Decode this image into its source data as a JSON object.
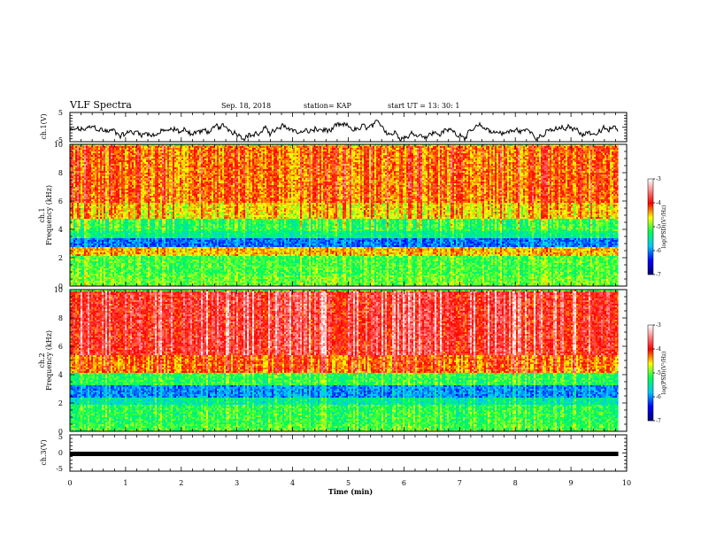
{
  "header": {
    "title": "VLF Spectra",
    "date": "Sep. 18, 2018",
    "station": "station= KAP",
    "start": "start  UT  =   13: 30: 1"
  },
  "chart_data": [
    {
      "type": "line",
      "panel": "ch1-waveform",
      "ylabel": "ch.1(V)",
      "ylim": [
        -5,
        5
      ],
      "yticks": [
        "5",
        "-5"
      ],
      "x_range_min": [
        0,
        9.85
      ],
      "description_values": "noisy waveform, mean near -1.5 V, amplitude roughly ±2 V"
    },
    {
      "type": "heatmap",
      "panel": "ch1-spectrogram",
      "ylabel": "ch.1\nFrequency  (kHz)",
      "ylim": [
        0,
        10
      ],
      "yticks": [
        "0",
        "2",
        "4",
        "6",
        "8",
        "10"
      ],
      "x_range_min": [
        0,
        9.85
      ],
      "colorbar": {
        "label": "log(PSD)(V²/Hz)",
        "range": [
          -7,
          -3
        ],
        "ticks": [
          "-3",
          "-4",
          "-5",
          "-6",
          "-7"
        ]
      },
      "bands_khz": [
        {
          "from": 0.0,
          "to": 0.8,
          "level": -5.0
        },
        {
          "from": 0.8,
          "to": 2.2,
          "level": -5.1
        },
        {
          "from": 2.2,
          "to": 2.8,
          "level": -4.5
        },
        {
          "from": 2.8,
          "to": 3.4,
          "level": -6.1
        },
        {
          "from": 3.4,
          "to": 3.9,
          "level": -5.4
        },
        {
          "from": 3.9,
          "to": 4.8,
          "level": -5.2
        },
        {
          "from": 4.8,
          "to": 6.0,
          "level": -4.6
        },
        {
          "from": 6.0,
          "to": 10.0,
          "level": -4.3
        }
      ]
    },
    {
      "type": "heatmap",
      "panel": "ch2-spectrogram",
      "ylabel": "ch.2\nFrequency  (kHz)",
      "ylim": [
        0,
        10
      ],
      "yticks": [
        "0",
        "2",
        "4",
        "6",
        "8",
        "10"
      ],
      "x_range_min": [
        0,
        9.85
      ],
      "colorbar": {
        "label": "log(PSD)(V²/Hz)",
        "range": [
          -7,
          -3
        ],
        "ticks": [
          "-3",
          "-4",
          "-5",
          "-6",
          "-7"
        ]
      },
      "bands_khz": [
        {
          "from": 0.0,
          "to": 0.6,
          "level": -5.1
        },
        {
          "from": 0.6,
          "to": 1.9,
          "level": -5.2
        },
        {
          "from": 1.9,
          "to": 2.5,
          "level": -5.5
        },
        {
          "from": 2.5,
          "to": 3.3,
          "level": -6.0
        },
        {
          "from": 3.3,
          "to": 4.2,
          "level": -5.2
        },
        {
          "from": 4.2,
          "to": 5.5,
          "level": -4.3
        },
        {
          "from": 5.5,
          "to": 10.0,
          "level": -3.9
        }
      ]
    },
    {
      "type": "line",
      "panel": "ch3-waveform",
      "ylabel": "ch.3(V)",
      "ylim": [
        -5,
        5
      ],
      "yticks": [
        "5",
        "0",
        "-5"
      ],
      "x_range_min": [
        0,
        9.85
      ],
      "values_constant": 0
    }
  ],
  "xaxis": {
    "label": "Time  (min)",
    "ticks": [
      "0",
      "1",
      "2",
      "3",
      "4",
      "5",
      "6",
      "7",
      "8",
      "9",
      "10"
    ],
    "range": [
      0,
      10
    ]
  },
  "colors": {
    "scale": [
      "#00006e",
      "#0000ff",
      "#00c8ff",
      "#00ff50",
      "#ffff00",
      "#ff0000",
      "#ffffff"
    ]
  }
}
